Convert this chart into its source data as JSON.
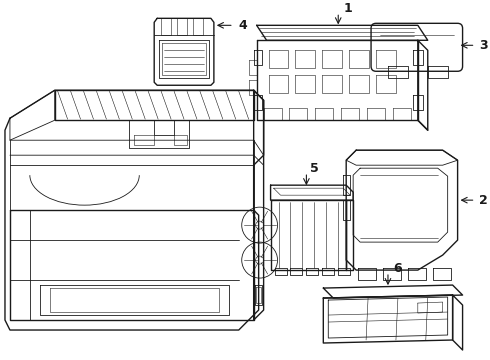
{
  "bg_color": "#ffffff",
  "line_color": "#1a1a1a",
  "lw_main": 1.0,
  "lw_detail": 0.6,
  "lw_thin": 0.4,
  "fig_width": 4.9,
  "fig_height": 3.6,
  "dpi": 100,
  "xlim": [
    0,
    490
  ],
  "ylim": [
    0,
    360
  ]
}
